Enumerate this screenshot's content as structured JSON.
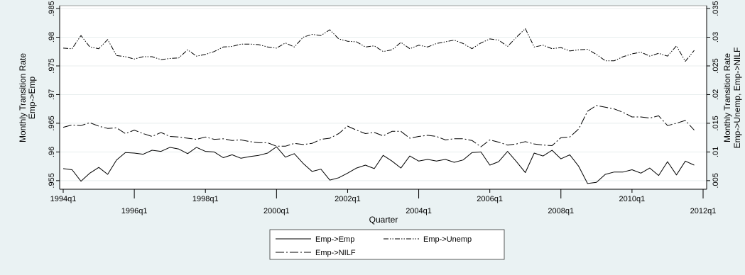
{
  "chart_data": {
    "type": "line",
    "title": "",
    "xlabel": "Quarter",
    "ylabel_left": [
      "Monthly Transition Rate",
      "Emp->Emp"
    ],
    "ylabel_right": [
      "Monthly Transition Rate",
      "Emp->Unemp, Emp->NILF"
    ],
    "x_start": 1994.0,
    "x_step": 0.25,
    "xlim": [
      1993.9,
      2012.1
    ],
    "ylim_left": [
      0.9535,
      0.9855
    ],
    "ylim_right": [
      0.0035,
      0.0355
    ],
    "x_ticks_top_row": [
      "1994q1",
      "1998q1",
      "2002q1",
      "2006q1",
      "2010q1"
    ],
    "x_ticks_bottom_row": [
      "1996q1",
      "2000q1",
      "2004q1",
      "2008q1",
      "2012q1"
    ],
    "y_ticks_left": [
      ".955",
      ".96",
      ".965",
      ".97",
      ".975",
      ".98",
      ".985"
    ],
    "y_ticks_right": [
      ".005",
      ".01",
      ".015",
      ".02",
      ".025",
      ".03",
      ".035"
    ],
    "grid": true,
    "legend_position": "bottom",
    "series": [
      {
        "name": "Emp->Emp",
        "axis": "left",
        "dash": "solid",
        "values": [
          0.9571,
          0.9569,
          0.9549,
          0.9563,
          0.9573,
          0.9561,
          0.9586,
          0.9599,
          0.9598,
          0.9596,
          0.9603,
          0.9601,
          0.9608,
          0.9605,
          0.9597,
          0.9608,
          0.9601,
          0.96,
          0.959,
          0.9595,
          0.9589,
          0.9592,
          0.9594,
          0.9598,
          0.9609,
          0.9591,
          0.9597,
          0.958,
          0.9566,
          0.957,
          0.9551,
          0.9555,
          0.9563,
          0.9572,
          0.9577,
          0.9571,
          0.9594,
          0.9584,
          0.9572,
          0.9593,
          0.9584,
          0.9587,
          0.9584,
          0.9587,
          0.9582,
          0.9586,
          0.9599,
          0.96,
          0.9577,
          0.9583,
          0.9601,
          0.9583,
          0.9564,
          0.9598,
          0.9593,
          0.9603,
          0.9588,
          0.9595,
          0.9575,
          0.9545,
          0.9547,
          0.9561,
          0.9565,
          0.9565,
          0.9569,
          0.9563,
          0.9572,
          0.9559,
          0.9583,
          0.956,
          0.9584,
          0.9577
        ]
      },
      {
        "name": "Emp->Unemp",
        "axis": "right",
        "dash": "dash-dot-dot",
        "values": [
          0.0281,
          0.028,
          0.0303,
          0.0283,
          0.028,
          0.0296,
          0.0268,
          0.0266,
          0.0262,
          0.0266,
          0.0266,
          0.0261,
          0.0263,
          0.0264,
          0.0278,
          0.0267,
          0.027,
          0.0275,
          0.0283,
          0.0284,
          0.0288,
          0.0288,
          0.0287,
          0.0283,
          0.0281,
          0.029,
          0.0283,
          0.03,
          0.0305,
          0.0303,
          0.0313,
          0.0297,
          0.0293,
          0.0292,
          0.0283,
          0.0285,
          0.0275,
          0.0278,
          0.0291,
          0.028,
          0.0286,
          0.0283,
          0.0289,
          0.0292,
          0.0295,
          0.0289,
          0.028,
          0.029,
          0.0297,
          0.0295,
          0.0284,
          0.03,
          0.0315,
          0.0283,
          0.0286,
          0.028,
          0.0282,
          0.0276,
          0.0278,
          0.0279,
          0.027,
          0.0259,
          0.0259,
          0.0266,
          0.0271,
          0.0274,
          0.0267,
          0.0272,
          0.0267,
          0.0285,
          0.0258,
          0.0277
        ]
      },
      {
        "name": "Emp->NILF",
        "axis": "right",
        "dash": "long-dash-dot",
        "values": [
          0.0143,
          0.0147,
          0.0146,
          0.0151,
          0.0145,
          0.0141,
          0.0142,
          0.0132,
          0.0138,
          0.0132,
          0.0127,
          0.0134,
          0.0127,
          0.0126,
          0.0124,
          0.0122,
          0.0126,
          0.0122,
          0.0123,
          0.012,
          0.0121,
          0.0118,
          0.0116,
          0.0116,
          0.011,
          0.011,
          0.0115,
          0.0113,
          0.0115,
          0.0122,
          0.0124,
          0.0132,
          0.0145,
          0.0138,
          0.0132,
          0.0134,
          0.0128,
          0.0136,
          0.0136,
          0.0124,
          0.0127,
          0.0129,
          0.0127,
          0.0121,
          0.0123,
          0.0123,
          0.012,
          0.0109,
          0.0121,
          0.0117,
          0.0112,
          0.0114,
          0.0118,
          0.0114,
          0.0112,
          0.0111,
          0.0125,
          0.0126,
          0.014,
          0.0171,
          0.0181,
          0.0178,
          0.0175,
          0.0169,
          0.0161,
          0.0161,
          0.0159,
          0.0163,
          0.0146,
          0.015,
          0.0155,
          0.0138
        ]
      }
    ]
  }
}
